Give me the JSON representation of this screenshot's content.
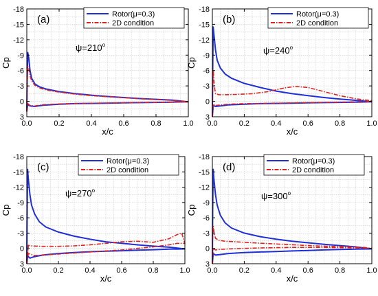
{
  "chart_data": [
    {
      "type": "line",
      "panel_label": "(a)",
      "annotation": {
        "symbol": "ψ",
        "value": "=210",
        "sup": "o"
      },
      "xlabel": "x/c",
      "ylabel": "Cp",
      "xlim": [
        0,
        1.0
      ],
      "ylim": [
        -18,
        3
      ],
      "y_inverted": true,
      "xticks": [
        "0.0",
        "0.2",
        "0.4",
        "0.6",
        "0.8",
        "1.0"
      ],
      "yticks": [
        "-18",
        "-15",
        "-12",
        "-9",
        "-6",
        "-3",
        "0",
        "3"
      ],
      "grid": true,
      "legend_position": "top-right",
      "series": [
        {
          "name": "Rotor(μ=0.3)",
          "color": "#1f2fd6",
          "style": "solid",
          "upper": {
            "x": [
              0,
              0.002,
              0.006,
              0.012,
              0.02,
              0.03,
              0.05,
              0.08,
              0.12,
              0.2,
              0.3,
              0.4,
              0.5,
              0.6,
              0.7,
              0.8,
              0.9,
              1.0
            ],
            "y": [
              2,
              -4,
              -9.5,
              -8.5,
              -6,
              -4.5,
              -3.4,
              -2.8,
              -2.4,
              -1.9,
              -1.5,
              -1.2,
              -0.95,
              -0.75,
              -0.55,
              -0.4,
              -0.25,
              0.1
            ]
          },
          "lower": {
            "x": [
              0,
              0.005,
              0.02,
              0.05,
              0.1,
              0.2,
              0.3,
              0.4,
              0.5,
              0.6,
              0.7,
              0.8,
              0.9,
              1.0
            ],
            "y": [
              2,
              0.6,
              0.9,
              1.0,
              0.75,
              0.55,
              0.45,
              0.4,
              0.35,
              0.3,
              0.25,
              0.2,
              0.15,
              0.1
            ]
          }
        },
        {
          "name": "2D condition",
          "color": "#e0201c",
          "style": "dashdot",
          "upper": {
            "x": [
              0,
              0.002,
              0.006,
              0.012,
              0.02,
              0.03,
              0.05,
              0.08,
              0.12,
              0.2,
              0.3,
              0.4,
              0.5,
              0.6,
              0.7,
              0.8,
              0.9,
              1.0
            ],
            "y": [
              2,
              -3,
              -6.8,
              -6.5,
              -5,
              -4,
              -3.1,
              -2.6,
              -2.2,
              -1.8,
              -1.4,
              -1.1,
              -0.9,
              -0.7,
              -0.5,
              -0.35,
              -0.2,
              0.1
            ]
          },
          "lower": {
            "x": [
              0,
              0.005,
              0.02,
              0.05,
              0.1,
              0.2,
              0.3,
              0.4,
              0.5,
              0.6,
              0.7,
              0.8,
              0.9,
              1.0
            ],
            "y": [
              2,
              0.4,
              0.8,
              0.9,
              0.65,
              0.5,
              0.42,
              0.36,
              0.32,
              0.28,
              0.24,
              0.2,
              0.15,
              0.1
            ]
          }
        }
      ]
    },
    {
      "type": "line",
      "panel_label": "(b)",
      "annotation": {
        "symbol": "ψ",
        "value": "=240",
        "sup": "o"
      },
      "xlabel": "x/c",
      "ylabel": "Cp",
      "xlim": [
        0,
        1.0
      ],
      "ylim": [
        -18,
        3
      ],
      "y_inverted": true,
      "xticks": [
        "0.0",
        "0.2",
        "0.4",
        "0.6",
        "0.8",
        "1.0"
      ],
      "yticks": [
        "-18",
        "-15",
        "-12",
        "-9",
        "-6",
        "-3",
        "0",
        "3"
      ],
      "grid": true,
      "legend_position": "top-right",
      "series": [
        {
          "name": "Rotor(μ=0.3)",
          "color": "#1f2fd6",
          "style": "solid",
          "upper": {
            "x": [
              0,
              0.002,
              0.005,
              0.01,
              0.02,
              0.03,
              0.05,
              0.08,
              0.12,
              0.2,
              0.3,
              0.4,
              0.5,
              0.6,
              0.7,
              0.8,
              0.9,
              1.0
            ],
            "y": [
              3,
              -6,
              -14.5,
              -13,
              -10,
              -8,
              -6.5,
              -5.3,
              -4.5,
              -3.5,
              -2.7,
              -2.0,
              -1.5,
              -1.1,
              -0.75,
              -0.45,
              -0.2,
              0.1
            ]
          },
          "lower": {
            "x": [
              0,
              0.005,
              0.02,
              0.05,
              0.1,
              0.2,
              0.3,
              0.4,
              0.5,
              0.6,
              0.7,
              0.8,
              0.9,
              1.0
            ],
            "y": [
              3,
              0.8,
              1.0,
              0.9,
              0.7,
              0.55,
              0.45,
              0.4,
              0.35,
              0.3,
              0.25,
              0.2,
              0.15,
              0.1
            ]
          }
        },
        {
          "name": "2D condition",
          "color": "#e0201c",
          "style": "dashdot",
          "upper": {
            "x": [
              0,
              0.002,
              0.006,
              0.012,
              0.02,
              0.04,
              0.08,
              0.15,
              0.25,
              0.35,
              0.45,
              0.52,
              0.6,
              0.7,
              0.8,
              0.9,
              1.0
            ],
            "y": [
              3,
              -3,
              -6,
              -3,
              -1.5,
              -1.3,
              -1.3,
              -1.35,
              -1.5,
              -1.9,
              -2.6,
              -2.9,
              -2.7,
              -1.9,
              -1.1,
              -0.5,
              -0.1
            ]
          },
          "lower": {
            "x": [
              0,
              0.005,
              0.02,
              0.05,
              0.1,
              0.2,
              0.3,
              0.4,
              0.5,
              0.6,
              0.7,
              0.8,
              0.9,
              1.0
            ],
            "y": [
              3,
              0.5,
              0.8,
              0.7,
              0.55,
              0.45,
              0.4,
              0.35,
              0.3,
              0.25,
              0.2,
              0.15,
              0.1,
              0.05
            ]
          }
        }
      ]
    },
    {
      "type": "line",
      "panel_label": "(c)",
      "annotation": {
        "symbol": "ψ",
        "value": "=270",
        "sup": "o"
      },
      "xlabel": "x/c",
      "ylabel": "Cp",
      "xlim": [
        0,
        1.0
      ],
      "ylim": [
        -18,
        3
      ],
      "y_inverted": true,
      "xticks": [
        "0.0",
        "0.2",
        "0.4",
        "0.6",
        "0.8",
        "1.0"
      ],
      "yticks": [
        "-18",
        "-15",
        "-12",
        "-9",
        "-6",
        "-3",
        "0",
        "3"
      ],
      "grid": true,
      "legend_position": "top-right",
      "series": [
        {
          "name": "Rotor(μ=0.3)",
          "color": "#1f2fd6",
          "style": "solid",
          "upper": {
            "x": [
              0,
              0.002,
              0.005,
              0.01,
              0.02,
              0.03,
              0.05,
              0.08,
              0.12,
              0.2,
              0.3,
              0.4,
              0.5,
              0.6,
              0.7,
              0.8,
              0.9,
              1.0
            ],
            "y": [
              3,
              -8,
              -15.5,
              -13.5,
              -10.5,
              -8.5,
              -6.7,
              -5.2,
              -4.2,
              -3.2,
              -2.4,
              -1.8,
              -1.3,
              -1.0,
              -0.7,
              -0.45,
              -0.25,
              0.1
            ]
          },
          "lower": {
            "x": [
              0,
              0.005,
              0.02,
              0.05,
              0.1,
              0.2,
              0.3,
              0.4,
              0.5,
              0.6,
              0.7,
              0.8,
              0.9,
              1.0
            ],
            "y": [
              3,
              1.5,
              1.9,
              1.6,
              1.3,
              1.0,
              0.8,
              0.65,
              0.55,
              0.45,
              0.35,
              0.25,
              0.15,
              0.1
            ]
          }
        },
        {
          "name": "2D condition",
          "color": "#e0201c",
          "style": "dashdot",
          "upper": {
            "x": [
              0,
              0.01,
              0.03,
              0.06,
              0.1,
              0.2,
              0.3,
              0.4,
              0.5,
              0.6,
              0.7,
              0.8,
              0.9,
              0.95,
              0.98,
              1.0
            ],
            "y": [
              3,
              -0.6,
              -0.5,
              -0.45,
              -0.4,
              -0.4,
              -0.5,
              -0.7,
              -1.0,
              -1.3,
              -1.4,
              -1.2,
              -1.9,
              -2.7,
              -3.0,
              -1.0
            ]
          },
          "lower": {
            "x": [
              0,
              0.01,
              0.05,
              0.1,
              0.2,
              0.3,
              0.4,
              0.5,
              0.6,
              0.7,
              0.8,
              0.9,
              0.95,
              1.0
            ],
            "y": [
              3,
              1.0,
              1.4,
              1.3,
              1.1,
              0.9,
              0.7,
              0.5,
              0.3,
              0.0,
              -0.3,
              -0.7,
              -1.0,
              -1.0
            ]
          }
        }
      ]
    },
    {
      "type": "line",
      "panel_label": "(d)",
      "annotation": {
        "symbol": "ψ",
        "value": "=300",
        "sup": "o"
      },
      "xlabel": "x/c",
      "ylabel": "Cp",
      "xlim": [
        0,
        1.0
      ],
      "ylim": [
        -18,
        3
      ],
      "y_inverted": true,
      "xticks": [
        "0.0",
        "0.2",
        "0.4",
        "0.6",
        "0.8",
        "1.0"
      ],
      "yticks": [
        "-18",
        "-15",
        "-12",
        "-9",
        "-6",
        "-3",
        "0",
        "3"
      ],
      "grid": true,
      "legend_position": "top-right",
      "series": [
        {
          "name": "Rotor(μ=0.3)",
          "color": "#1f2fd6",
          "style": "solid",
          "upper": {
            "x": [
              0,
              0.002,
              0.005,
              0.01,
              0.02,
              0.03,
              0.05,
              0.08,
              0.12,
              0.2,
              0.3,
              0.4,
              0.5,
              0.6,
              0.7,
              0.8,
              0.9,
              1.0
            ],
            "y": [
              3,
              -8,
              -15.5,
              -13.5,
              -10.5,
              -8.5,
              -6.5,
              -5.0,
              -4.0,
              -3.0,
              -2.3,
              -1.8,
              -1.4,
              -1.1,
              -0.8,
              -0.55,
              -0.3,
              0.1
            ]
          },
          "lower": {
            "x": [
              0,
              0.005,
              0.02,
              0.05,
              0.1,
              0.2,
              0.3,
              0.4,
              0.5,
              0.6,
              0.7,
              0.8,
              0.9,
              1.0
            ],
            "y": [
              3,
              1.0,
              1.3,
              1.2,
              1.0,
              0.8,
              0.7,
              0.6,
              0.5,
              0.4,
              0.3,
              0.2,
              0.15,
              0.1
            ]
          }
        },
        {
          "name": "2D condition",
          "color": "#e0201c",
          "style": "dashdot",
          "upper": {
            "x": [
              0,
              0.002,
              0.006,
              0.012,
              0.02,
              0.04,
              0.08,
              0.15,
              0.25,
              0.35,
              0.45,
              0.55,
              0.65,
              0.75,
              0.85,
              0.95,
              1.0
            ],
            "y": [
              3,
              -2,
              -4.3,
              -2.8,
              -2.0,
              -1.6,
              -1.4,
              -1.3,
              -1.1,
              -0.95,
              -0.8,
              -0.65,
              -0.5,
              -0.4,
              -0.3,
              -0.2,
              0.0
            ]
          },
          "lower": {
            "x": [
              0,
              0.005,
              0.02,
              0.05,
              0.1,
              0.2,
              0.3,
              0.4,
              0.5,
              0.6,
              0.7,
              0.8,
              0.9,
              1.0
            ],
            "y": [
              3,
              0.0,
              0.3,
              0.2,
              0.1,
              0.0,
              -0.1,
              -0.15,
              -0.2,
              -0.2,
              -0.2,
              -0.15,
              -0.1,
              0.0
            ]
          }
        }
      ]
    }
  ]
}
